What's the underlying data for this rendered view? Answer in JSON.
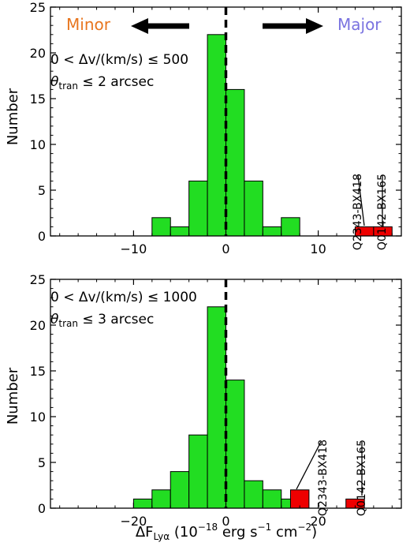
{
  "figure": {
    "minor_label": "Minor",
    "major_label": "Major",
    "minor_color": "#e8761f",
    "major_color": "#7a73e0",
    "bar_color": "#22dd22",
    "highlight_color": "#ee0000",
    "ylabel": "Number",
    "xlabel_main": "ΔF",
    "xlabel_sub": "Lyα",
    "xlabel_units_pre": " (10",
    "xlabel_units_exp1": "−18",
    "xlabel_units_mid": " erg s",
    "xlabel_units_exp2": "−1",
    "xlabel_units_cm": " cm",
    "xlabel_units_exp3": "−2",
    "xlabel_units_post": ")"
  },
  "chart_data": [
    {
      "type": "bar",
      "panel": "top",
      "condition_line1": "0 < Δv/(km/s) ≤ 500",
      "condition_theta": "θ",
      "condition_theta_sub": "tran",
      "condition_line2_rest": " ≤ 2 arcsec",
      "xlim": [
        -19,
        19
      ],
      "ylim": [
        0,
        25
      ],
      "xticks": [
        -10,
        0,
        10
      ],
      "xtick_labels": [
        "−10",
        "0",
        "10"
      ],
      "yticks": [
        0,
        5,
        10,
        15,
        20,
        25
      ],
      "ytick_labels": [
        "0",
        "5",
        "10",
        "15",
        "20",
        "25"
      ],
      "bin_width": 2,
      "bins": [
        {
          "x0": -8,
          "count": 2
        },
        {
          "x0": -6,
          "count": 1
        },
        {
          "x0": -4,
          "count": 6
        },
        {
          "x0": -2,
          "count": 22
        },
        {
          "x0": 0,
          "count": 16
        },
        {
          "x0": 2,
          "count": 6
        },
        {
          "x0": 4,
          "count": 1
        },
        {
          "x0": 6,
          "count": 2
        }
      ],
      "highlighted": [
        {
          "name": "Q2343-BX418",
          "x0": 14,
          "count": 1
        },
        {
          "name": "Q0142-BX165",
          "x0": 16,
          "count": 1
        }
      ],
      "vline_x": 0
    },
    {
      "type": "bar",
      "panel": "bottom",
      "condition_line1": "0 < Δv/(km/s) ≤ 1000",
      "condition_theta": "θ",
      "condition_theta_sub": "tran",
      "condition_line2_rest": " ≤ 3 arcsec",
      "xlim": [
        -38,
        38
      ],
      "ylim": [
        0,
        25
      ],
      "xticks": [
        -20,
        0,
        20
      ],
      "xtick_labels": [
        "−20",
        "0",
        "20"
      ],
      "yticks": [
        0,
        5,
        10,
        15,
        20,
        25
      ],
      "ytick_labels": [
        "0",
        "5",
        "10",
        "15",
        "20",
        "25"
      ],
      "bin_width": 4,
      "bins": [
        {
          "x0": -20,
          "count": 1
        },
        {
          "x0": -16,
          "count": 2
        },
        {
          "x0": -12,
          "count": 4
        },
        {
          "x0": -8,
          "count": 8
        },
        {
          "x0": -4,
          "count": 22
        },
        {
          "x0": 0,
          "count": 14
        },
        {
          "x0": 4,
          "count": 3
        },
        {
          "x0": 8,
          "count": 2
        },
        {
          "x0": 12,
          "count": 1
        }
      ],
      "highlighted": [
        {
          "name": "Q2343-BX418",
          "x0": 14,
          "count": 2
        },
        {
          "name": "Q0142-BX165",
          "x0": 26,
          "count": 1
        }
      ],
      "vline_x": 0
    }
  ]
}
